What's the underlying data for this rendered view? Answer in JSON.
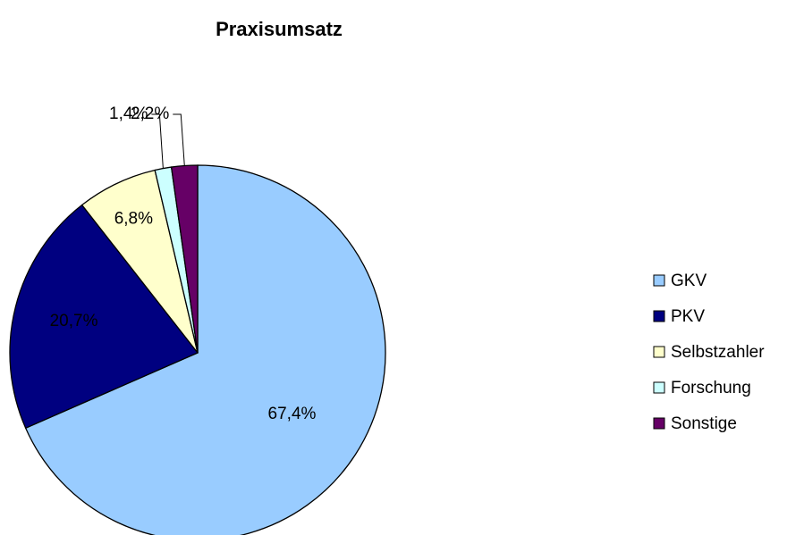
{
  "chart_data": {
    "type": "pie",
    "title": "Praxisumsatz",
    "categories": [
      "GKV",
      "PKV",
      "Selbstzahler",
      "Forschung",
      "Sonstige"
    ],
    "values": [
      67.4,
      20.7,
      6.8,
      1.4,
      2.2
    ],
    "value_labels": [
      "67,4%",
      "20,7%",
      "6,8%",
      "1,4%",
      "2,2%"
    ],
    "colors": [
      "#99ccff",
      "#000080",
      "#ffffcc",
      "#ccffff",
      "#660066"
    ],
    "label_colors": [
      "#000000",
      "#ffffff",
      "#000000",
      "#000000",
      "#000000"
    ],
    "legend": "right"
  }
}
